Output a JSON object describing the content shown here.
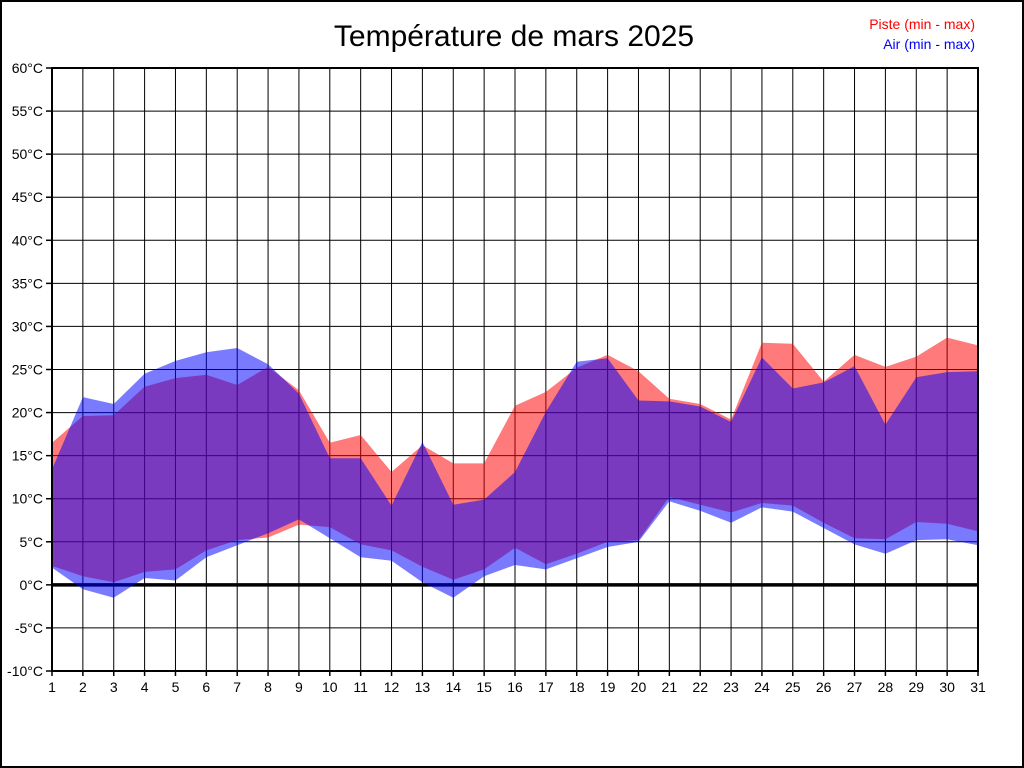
{
  "chart_data": {
    "type": "area",
    "title": "Température de mars 2025",
    "x": [
      1,
      2,
      3,
      4,
      5,
      6,
      7,
      8,
      9,
      10,
      11,
      12,
      13,
      14,
      15,
      16,
      17,
      18,
      19,
      20,
      21,
      22,
      23,
      24,
      25,
      26,
      27,
      28,
      29,
      30,
      31
    ],
    "series": [
      {
        "name": "Piste (min - max)",
        "color": "#ff0000",
        "max": [
          16.5,
          19.6,
          19.7,
          23.0,
          24.0,
          24.4,
          23.2,
          25.3,
          22.6,
          16.5,
          17.4,
          13.1,
          16.2,
          14.1,
          14.1,
          20.8,
          22.4,
          25.2,
          26.7,
          24.8,
          21.6,
          21.0,
          19.2,
          28.1,
          28.0,
          23.6,
          26.7,
          25.3,
          26.5,
          28.7,
          27.8
        ],
        "min": [
          2.2,
          1.0,
          0.3,
          1.5,
          1.8,
          4.0,
          5.2,
          5.5,
          7.0,
          6.7,
          4.7,
          4.0,
          2.1,
          0.6,
          1.8,
          4.3,
          2.4,
          3.6,
          5.0,
          5.2,
          10.2,
          9.3,
          8.4,
          9.5,
          9.2,
          7.2,
          5.4,
          5.3,
          7.3,
          7.1,
          6.2
        ]
      },
      {
        "name": "Air (min - max)",
        "color": "#0000ff",
        "max": [
          13.4,
          21.8,
          21.0,
          24.5,
          26.0,
          27.0,
          27.5,
          25.6,
          22.2,
          14.7,
          14.7,
          9.2,
          16.6,
          9.3,
          9.9,
          13.1,
          20.1,
          25.9,
          26.3,
          21.4,
          21.3,
          20.7,
          18.9,
          26.4,
          22.8,
          23.5,
          25.4,
          18.6,
          24.1,
          24.7,
          24.8
        ],
        "min": [
          2.0,
          -0.5,
          -1.5,
          0.8,
          0.5,
          3.2,
          4.6,
          6.0,
          7.6,
          5.4,
          3.2,
          2.8,
          0.3,
          -1.5,
          1.0,
          2.3,
          1.8,
          3.1,
          4.4,
          5.0,
          9.7,
          8.6,
          7.2,
          9.0,
          8.5,
          6.6,
          4.7,
          3.6,
          5.2,
          5.3,
          4.6
        ]
      }
    ],
    "y_axis": {
      "min": -10,
      "max": 60,
      "step": 5,
      "unit": "°C",
      "zero_line": true
    },
    "x_axis": {
      "label_every": 1
    },
    "grid": "on",
    "legend_position": "top-right",
    "fill_opacity": 0.52
  }
}
